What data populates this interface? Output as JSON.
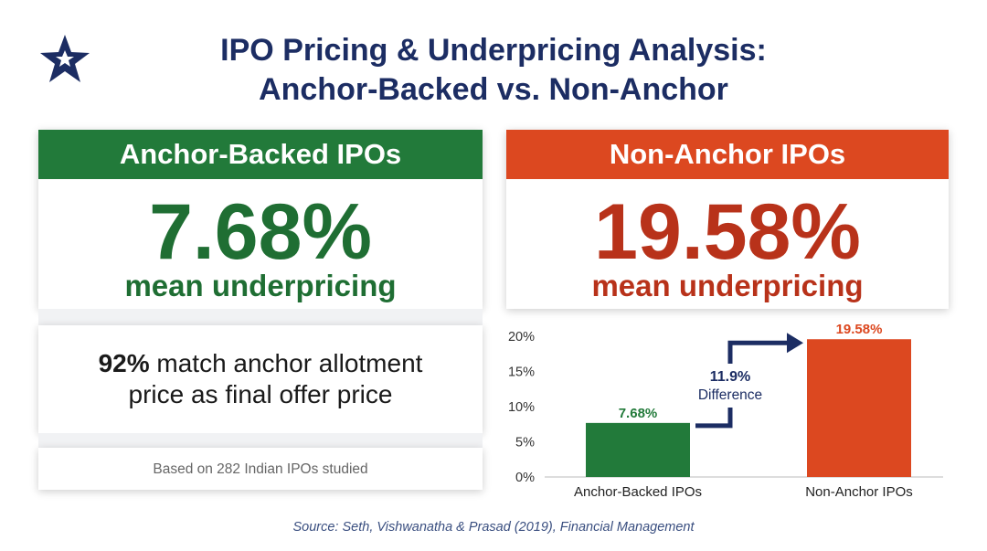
{
  "logo": {
    "icon": "star-icon",
    "color": "#1c2d63"
  },
  "title": {
    "line1": "IPO Pricing & Underpricing Analysis:",
    "line2": "Anchor-Backed vs. Non-Anchor"
  },
  "anchor_card": {
    "header": "Anchor-Backed IPOs",
    "value": "7.68%",
    "label": "mean underpricing",
    "match_pct": "92%",
    "match_line1": " match anchor allotment",
    "match_line2": "price as final offer price",
    "footnote": "Based on 282 Indian IPOs studied",
    "color": "#227a3a"
  },
  "non_anchor_card": {
    "header": "Non-Anchor IPOs",
    "value": "19.58%",
    "label": "mean underpricing",
    "color": "#dc4820"
  },
  "chart_data": {
    "type": "bar",
    "categories": [
      "Anchor-Backed IPOs",
      "Non-Anchor IPOs"
    ],
    "values": [
      7.68,
      19.58
    ],
    "value_labels": [
      "7.68%",
      "19.58%"
    ],
    "colors": [
      "#227a3a",
      "#dc4820"
    ],
    "ylim": [
      0,
      20
    ],
    "yticks": [
      0,
      5,
      10,
      15,
      20
    ],
    "ytick_labels": [
      "0%",
      "5%",
      "10%",
      "15%",
      "20%"
    ],
    "grid": false,
    "annotation": {
      "value": "11.9%",
      "label": "Difference"
    }
  },
  "source": "Source: Seth, Vishwanatha & Prasad (2019), Financial Management"
}
